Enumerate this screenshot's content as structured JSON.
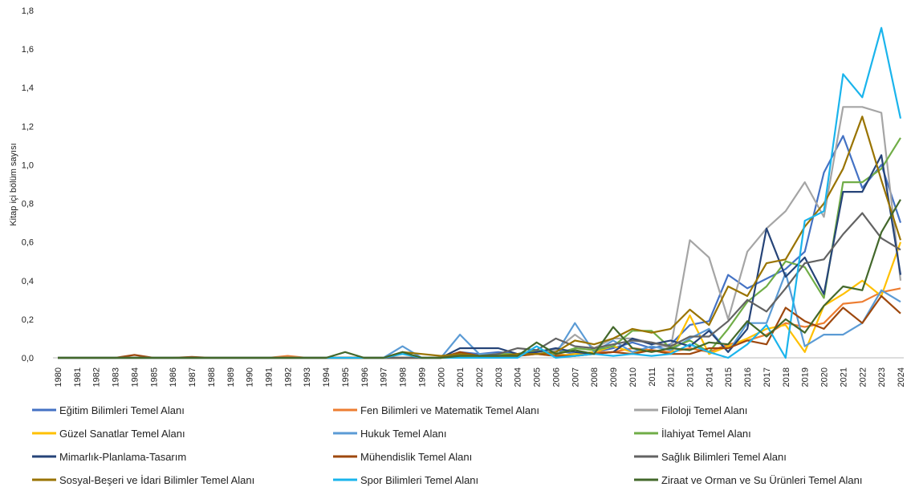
{
  "chart_data": {
    "type": "line",
    "y_label": "Kitap içi bölüm sayısı",
    "categories": [
      "1980",
      "1981",
      "1982",
      "1983",
      "1984",
      "1985",
      "1986",
      "1987",
      "1988",
      "1989",
      "1990",
      "1991",
      "1992",
      "1993",
      "1994",
      "1995",
      "1996",
      "1997",
      "1998",
      "1999",
      "2000",
      "2001",
      "2002",
      "2003",
      "2004",
      "2005",
      "2006",
      "2007",
      "2008",
      "2009",
      "2010",
      "2011",
      "2012",
      "2013",
      "2014",
      "2015",
      "2016",
      "2017",
      "2018",
      "2019",
      "2020",
      "2021",
      "2022",
      "2023",
      "2024"
    ],
    "ylim": [
      0,
      1.8
    ],
    "yticks": [
      {
        "value": 0,
        "label": "0,0"
      },
      {
        "value": 0.2,
        "label": "0,2"
      },
      {
        "value": 0.4,
        "label": "0,4"
      },
      {
        "value": 0.6,
        "label": "0,6"
      },
      {
        "value": 0.8,
        "label": "0,8"
      },
      {
        "value": 1,
        "label": "1,0"
      },
      {
        "value": 1.2,
        "label": "1,2"
      },
      {
        "value": 1.4,
        "label": "1,4"
      },
      {
        "value": 1.6,
        "label": "1,6"
      },
      {
        "value": 1.8,
        "label": "1,8"
      }
    ],
    "series": [
      {
        "name": "Eğitim Bilimleri Temel Alanı",
        "color": "#4472c4",
        "values": [
          0,
          0,
          0,
          0,
          0,
          0,
          0,
          0,
          0,
          0,
          0,
          0,
          0,
          0,
          0,
          0,
          0,
          0,
          0,
          0,
          0,
          0.03,
          0.02,
          0.03,
          0.02,
          0.03,
          0.04,
          0.02,
          0.03,
          0.05,
          0.08,
          0.05,
          0.07,
          0.17,
          0.19,
          0.43,
          0.36,
          0.41,
          0.46,
          0.55,
          0.96,
          1.15,
          0.88,
          1.0,
          0.7
        ]
      },
      {
        "name": "Fen Bilimleri ve Matematik Temel Alanı",
        "color": "#ed7d31",
        "values": [
          0,
          0,
          0,
          0,
          0,
          0,
          0,
          0,
          0,
          0,
          0,
          0,
          0.01,
          0,
          0,
          0,
          0,
          0,
          0,
          0,
          0,
          0.01,
          0.01,
          0.02,
          0.01,
          0.02,
          0.02,
          0.01,
          0.03,
          0.03,
          0.05,
          0.04,
          0.03,
          0.05,
          0.03,
          0.07,
          0.09,
          0.12,
          0.18,
          0.16,
          0.18,
          0.28,
          0.29,
          0.34,
          0.36
        ]
      },
      {
        "name": "Filoloji Temel Alanı",
        "color": "#a5a5a5",
        "values": [
          0,
          0,
          0,
          0,
          0,
          0,
          0,
          0,
          0,
          0,
          0,
          0,
          0,
          0,
          0,
          0,
          0,
          0,
          0,
          0,
          0,
          0.02,
          0.01,
          0.02,
          0.02,
          0.03,
          0.04,
          0.12,
          0.05,
          0.1,
          0.1,
          0.08,
          0.05,
          0.61,
          0.52,
          0.2,
          0.55,
          0.67,
          0.76,
          0.91,
          0.73,
          1.3,
          1.3,
          1.27,
          0.4
        ]
      },
      {
        "name": "Güzel Sanatlar Temel Alanı",
        "color": "#ffc000",
        "values": [
          0,
          0,
          0,
          0,
          0,
          0,
          0,
          0,
          0,
          0,
          0,
          0,
          0,
          0,
          0,
          0,
          0,
          0,
          0,
          0,
          0,
          0.01,
          0.01,
          0.01,
          0.02,
          0.02,
          0.01,
          0.02,
          0.03,
          0.06,
          0.03,
          0.04,
          0.02,
          0.22,
          0.02,
          0.06,
          0.1,
          0.15,
          0.17,
          0.03,
          0.27,
          0.33,
          0.4,
          0.32,
          0.6
        ]
      },
      {
        "name": "Hukuk Temel Alanı",
        "color": "#5b9bd5",
        "values": [
          0,
          0,
          0,
          0,
          0,
          0,
          0,
          0,
          0,
          0,
          0,
          0,
          0,
          0,
          0,
          0,
          0,
          0,
          0.06,
          0,
          0,
          0.12,
          0.02,
          0.02,
          0.01,
          0.04,
          0.02,
          0.18,
          0.03,
          0.09,
          0.03,
          0.06,
          0.04,
          0.1,
          0.15,
          0.03,
          0.18,
          0.18,
          0.44,
          0.06,
          0.12,
          0.12,
          0.18,
          0.35,
          0.29
        ]
      },
      {
        "name": "İlahiyat Temel Alanı",
        "color": "#70ad47",
        "values": [
          0,
          0,
          0,
          0,
          0,
          0,
          0,
          0,
          0,
          0,
          0,
          0,
          0,
          0,
          0,
          0,
          0,
          0,
          0,
          0,
          0,
          0.01,
          0.01,
          0.02,
          0.02,
          0.04,
          0.02,
          0.05,
          0.04,
          0.06,
          0.14,
          0.14,
          0.05,
          0.09,
          0.03,
          0.15,
          0.29,
          0.37,
          0.5,
          0.47,
          0.31,
          0.91,
          0.91,
          0.98,
          1.14
        ]
      },
      {
        "name": "Mimarlık-Planlama-Tasarım",
        "color": "#264478",
        "values": [
          0,
          0,
          0,
          0,
          0,
          0,
          0,
          0,
          0,
          0,
          0,
          0,
          0,
          0,
          0,
          0,
          0,
          0,
          0,
          0,
          0,
          0.05,
          0.05,
          0.05,
          0.02,
          0.03,
          0.05,
          0.03,
          0.02,
          0.03,
          0.1,
          0.07,
          0.09,
          0.06,
          0.14,
          0.03,
          0.15,
          0.67,
          0.42,
          0.52,
          0.33,
          0.86,
          0.86,
          1.05,
          0.43
        ]
      },
      {
        "name": "Mühendislik Temel Alanı",
        "color": "#9e480e",
        "values": [
          0,
          0,
          0,
          0,
          0.015,
          0,
          0,
          0.005,
          0,
          0,
          0,
          0,
          0,
          0,
          0,
          0,
          0,
          0,
          0,
          0,
          0,
          0.03,
          0.01,
          0.01,
          0.01,
          0.02,
          0.01,
          0.01,
          0.02,
          0.03,
          0.02,
          0.04,
          0.02,
          0.02,
          0.05,
          0.05,
          0.09,
          0.07,
          0.26,
          0.19,
          0.15,
          0.26,
          0.18,
          0.32,
          0.23
        ]
      },
      {
        "name": "Sağlık Bilimleri Temel Alanı",
        "color": "#636363",
        "values": [
          0,
          0,
          0,
          0,
          0,
          0,
          0,
          0,
          0,
          0,
          0,
          0,
          0,
          0,
          0,
          0,
          0,
          0,
          0,
          0,
          0,
          0.02,
          0.01,
          0.02,
          0.05,
          0.04,
          0.1,
          0.06,
          0.05,
          0.07,
          0.09,
          0.08,
          0.06,
          0.11,
          0.11,
          0.19,
          0.3,
          0.24,
          0.36,
          0.49,
          0.51,
          0.64,
          0.75,
          0.62,
          0.56
        ]
      },
      {
        "name": "Sosyal-Beşeri ve İdari Bilimler Temel Alanı",
        "color": "#997300",
        "values": [
          0,
          0,
          0,
          0,
          0,
          0,
          0,
          0,
          0,
          0,
          0,
          0,
          0,
          0,
          0,
          0,
          0,
          0,
          0.03,
          0.02,
          0.01,
          0.02,
          0.01,
          0.01,
          0.02,
          0.02,
          0.03,
          0.09,
          0.07,
          0.1,
          0.15,
          0.13,
          0.15,
          0.25,
          0.17,
          0.37,
          0.32,
          0.49,
          0.51,
          0.68,
          0.8,
          0.98,
          1.25,
          0.92,
          0.61
        ]
      },
      {
        "name": "Spor Bilimleri Temel Alanı",
        "color": "#1ab4ec",
        "values": [
          0,
          0,
          0,
          0,
          0,
          0,
          0,
          0,
          0,
          0,
          0,
          0,
          0,
          0,
          0,
          0,
          0,
          0,
          0.02,
          0,
          0,
          0,
          0,
          0,
          0,
          0.06,
          0,
          0.01,
          0.02,
          0.01,
          0.02,
          0.01,
          0.02,
          0.07,
          0.03,
          0,
          0.07,
          0.17,
          0,
          0.71,
          0.76,
          1.47,
          1.35,
          1.71,
          1.24
        ]
      },
      {
        "name": "Ziraat ve Orman ve Su Ürünleri Temel Alanı",
        "color": "#43682b",
        "values": [
          0,
          0,
          0,
          0,
          0,
          0,
          0,
          0,
          0,
          0,
          0,
          0,
          0,
          0,
          0,
          0.03,
          0,
          0,
          0.03,
          0,
          0,
          0.01,
          0.01,
          0.01,
          0.01,
          0.08,
          0.02,
          0.04,
          0.02,
          0.16,
          0.05,
          0.03,
          0.05,
          0.04,
          0.08,
          0.07,
          0.19,
          0.11,
          0.2,
          0.13,
          0.27,
          0.37,
          0.35,
          0.65,
          0.82
        ]
      }
    ]
  }
}
